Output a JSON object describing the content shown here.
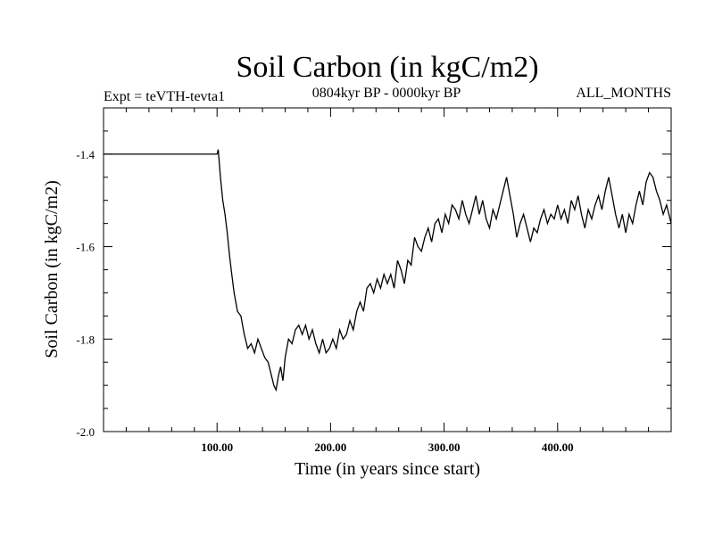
{
  "chart_data": {
    "type": "line",
    "title": "Soil Carbon (in kgC/m2)",
    "subtitle_left": "Expt = teVTH-tevta1",
    "subtitle_center": "0804kyr BP - 0000kyr BP",
    "subtitle_right": "ALL_MONTHS",
    "xlabel": "Time (in years since start)",
    "ylabel": "Soil Carbon (in kgC/m2)",
    "xlim": [
      0,
      500
    ],
    "ylim": [
      -2.0,
      -1.3
    ],
    "x_ticks": [
      100,
      200,
      300,
      400
    ],
    "x_tick_labels": [
      "100.00",
      "200.00",
      "300.00",
      "400.00"
    ],
    "y_ticks": [
      -2.0,
      -1.8,
      -1.6,
      -1.4
    ],
    "y_tick_labels": [
      "-2.0",
      "-1.8",
      "-1.6",
      "-1.4"
    ],
    "series": [
      {
        "name": "Soil Carbon",
        "color": "#000000",
        "x": [
          0,
          100,
          101,
          103,
          105,
          107,
          109,
          111,
          113,
          115,
          118,
          121,
          124,
          127,
          130,
          133,
          136,
          139,
          142,
          145,
          148,
          150,
          152,
          154,
          156,
          158,
          160,
          163,
          166,
          169,
          172,
          175,
          178,
          181,
          184,
          187,
          190,
          193,
          196,
          199,
          202,
          205,
          208,
          211,
          214,
          217,
          220,
          223,
          226,
          229,
          232,
          235,
          238,
          241,
          244,
          247,
          250,
          253,
          256,
          259,
          262,
          265,
          268,
          271,
          274,
          277,
          280,
          283,
          286,
          289,
          292,
          295,
          298,
          301,
          304,
          307,
          310,
          313,
          316,
          319,
          322,
          325,
          328,
          331,
          334,
          337,
          340,
          343,
          346,
          349,
          352,
          355,
          358,
          361,
          364,
          367,
          370,
          373,
          376,
          379,
          382,
          385,
          388,
          391,
          394,
          397,
          400,
          403,
          406,
          409,
          412,
          415,
          418,
          421,
          424,
          427,
          430,
          433,
          436,
          439,
          442,
          445,
          448,
          451,
          454,
          457,
          460,
          463,
          466,
          469,
          472,
          475,
          478,
          481,
          484,
          487,
          490,
          493,
          496,
          500
        ],
        "y": [
          -1.4,
          -1.4,
          -1.39,
          -1.45,
          -1.5,
          -1.53,
          -1.57,
          -1.62,
          -1.66,
          -1.7,
          -1.74,
          -1.75,
          -1.79,
          -1.82,
          -1.81,
          -1.83,
          -1.8,
          -1.82,
          -1.84,
          -1.85,
          -1.88,
          -1.9,
          -1.91,
          -1.88,
          -1.86,
          -1.89,
          -1.84,
          -1.8,
          -1.81,
          -1.78,
          -1.77,
          -1.79,
          -1.77,
          -1.8,
          -1.78,
          -1.81,
          -1.83,
          -1.8,
          -1.83,
          -1.82,
          -1.8,
          -1.82,
          -1.78,
          -1.8,
          -1.79,
          -1.76,
          -1.78,
          -1.74,
          -1.72,
          -1.74,
          -1.69,
          -1.68,
          -1.7,
          -1.67,
          -1.69,
          -1.66,
          -1.68,
          -1.66,
          -1.69,
          -1.63,
          -1.65,
          -1.68,
          -1.63,
          -1.64,
          -1.58,
          -1.6,
          -1.61,
          -1.58,
          -1.56,
          -1.59,
          -1.55,
          -1.54,
          -1.57,
          -1.53,
          -1.55,
          -1.51,
          -1.52,
          -1.54,
          -1.5,
          -1.53,
          -1.55,
          -1.52,
          -1.49,
          -1.53,
          -1.5,
          -1.54,
          -1.56,
          -1.52,
          -1.54,
          -1.51,
          -1.48,
          -1.45,
          -1.49,
          -1.53,
          -1.58,
          -1.55,
          -1.53,
          -1.56,
          -1.59,
          -1.56,
          -1.57,
          -1.54,
          -1.52,
          -1.55,
          -1.53,
          -1.54,
          -1.51,
          -1.54,
          -1.52,
          -1.55,
          -1.5,
          -1.52,
          -1.49,
          -1.53,
          -1.56,
          -1.52,
          -1.54,
          -1.51,
          -1.49,
          -1.52,
          -1.48,
          -1.45,
          -1.49,
          -1.53,
          -1.56,
          -1.53,
          -1.57,
          -1.53,
          -1.55,
          -1.51,
          -1.48,
          -1.51,
          -1.46,
          -1.44,
          -1.45,
          -1.48,
          -1.5,
          -1.53,
          -1.51,
          -1.55
        ]
      }
    ]
  }
}
